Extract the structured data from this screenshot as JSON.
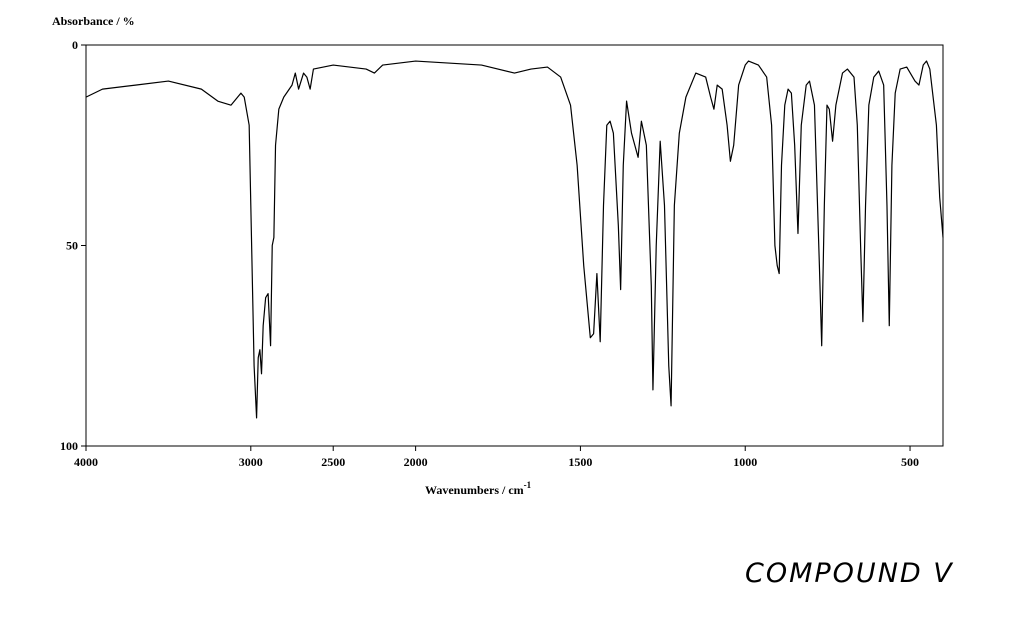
{
  "chart_data": {
    "type": "line",
    "ylabel": "Absorbance / %",
    "xlabel": "Wavenumbers / cm",
    "xlabel_superscript": "-1",
    "annotation": "COMPOUND V",
    "xlim": [
      4000,
      400
    ],
    "x_scale_break": 2000,
    "ylim": [
      0,
      100
    ],
    "y_inverted": true,
    "xticks": [
      4000,
      3000,
      2500,
      2000,
      1500,
      1000,
      500
    ],
    "yticks": [
      0,
      50,
      100
    ],
    "series": [
      {
        "color": "#000000",
        "x": [
          4000,
          3900,
          3700,
          3500,
          3300,
          3200,
          3120,
          3060,
          3040,
          3010,
          3000,
          2980,
          2965,
          2955,
          2945,
          2935,
          2925,
          2910,
          2895,
          2880,
          2870,
          2860,
          2850,
          2830,
          2800,
          2750,
          2730,
          2710,
          2680,
          2660,
          2640,
          2620,
          2500,
          2300,
          2250,
          2200,
          2000,
          1800,
          1700,
          1650,
          1600,
          1560,
          1530,
          1510,
          1490,
          1470,
          1460,
          1450,
          1440,
          1430,
          1420,
          1410,
          1400,
          1385,
          1378,
          1370,
          1360,
          1345,
          1335,
          1325,
          1315,
          1300,
          1285,
          1280,
          1270,
          1258,
          1245,
          1232,
          1225,
          1215,
          1200,
          1180,
          1150,
          1120,
          1105,
          1095,
          1085,
          1070,
          1055,
          1045,
          1035,
          1020,
          1000,
          990,
          960,
          935,
          920,
          910,
          903,
          897,
          890,
          880,
          870,
          860,
          850,
          840,
          830,
          815,
          805,
          790,
          775,
          768,
          760,
          752,
          745,
          735,
          725,
          705,
          690,
          670,
          660,
          650,
          643,
          635,
          625,
          610,
          595,
          580,
          570,
          563,
          555,
          545,
          530,
          510,
          485,
          473,
          460,
          450,
          440,
          420,
          410,
          400
        ],
        "values": [
          13,
          11,
          10,
          9,
          11,
          14,
          15,
          12,
          13,
          20,
          40,
          80,
          93,
          78,
          76,
          82,
          70,
          63,
          62,
          75,
          50,
          48,
          25,
          16,
          13,
          10,
          7,
          11,
          7,
          8,
          11,
          6,
          5,
          6,
          7,
          5,
          4,
          5,
          7,
          6,
          5.5,
          8,
          15,
          30,
          55,
          73,
          72,
          57,
          74,
          40,
          20,
          19,
          22,
          45,
          61,
          30,
          14,
          22,
          25,
          28,
          19,
          25,
          60,
          86,
          50,
          24,
          40,
          80,
          90,
          40,
          22,
          13,
          7,
          8,
          13,
          16,
          10,
          11,
          20,
          29,
          25,
          10,
          5,
          4,
          5,
          8,
          20,
          50,
          55,
          57,
          30,
          15,
          11,
          12,
          25,
          47,
          20,
          10,
          9,
          15,
          55,
          75,
          40,
          15,
          16,
          24,
          15,
          7,
          6,
          8,
          20,
          50,
          69,
          40,
          15,
          8,
          6.5,
          10,
          40,
          70,
          30,
          12,
          6,
          5.5,
          9,
          10,
          5,
          4,
          6,
          20,
          38,
          48
        ]
      }
    ]
  }
}
